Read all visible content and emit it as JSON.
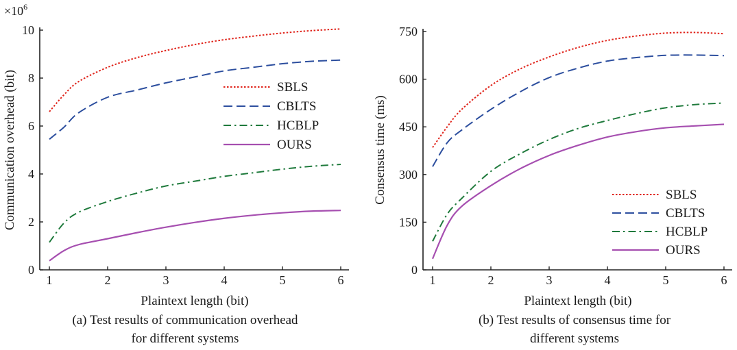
{
  "colors": {
    "SBLS": "#e0241b",
    "CBLTS": "#2c4e9e",
    "HCBLP": "#1f7a3c",
    "OURS": "#a64fb0",
    "axis": "#222222"
  },
  "chart_data": [
    {
      "type": "line",
      "ylabel": "Communication overhead (bit)",
      "xlabel": "Plaintext length (bit)",
      "caption_line1": "(a) Test results of communication overhead",
      "caption_line2": "for different systems",
      "y_multiplier": "×10",
      "y_multiplier_exp": "6",
      "xlim": [
        1,
        6
      ],
      "ylim": [
        0,
        10
      ],
      "xticks": [
        "1",
        "2",
        "3",
        "4",
        "5",
        "6"
      ],
      "yticks": [
        "0",
        "2",
        "4",
        "6",
        "8",
        "10"
      ],
      "legend_position": "middle-right",
      "x": [
        1,
        1.25,
        1.5,
        2,
        2.5,
        3,
        3.5,
        4,
        4.5,
        5,
        5.5,
        6
      ],
      "series": [
        {
          "name": "SBLS",
          "style": "dotted",
          "values": [
            6.6,
            7.3,
            7.85,
            8.45,
            8.85,
            9.15,
            9.4,
            9.6,
            9.75,
            9.88,
            9.98,
            10.05
          ]
        },
        {
          "name": "CBLTS",
          "style": "dashed",
          "values": [
            5.45,
            5.95,
            6.55,
            7.2,
            7.5,
            7.8,
            8.05,
            8.3,
            8.45,
            8.6,
            8.7,
            8.75
          ]
        },
        {
          "name": "HCBLP",
          "style": "dashdot",
          "values": [
            1.15,
            1.95,
            2.4,
            2.85,
            3.2,
            3.5,
            3.7,
            3.9,
            4.05,
            4.2,
            4.32,
            4.4
          ]
        },
        {
          "name": "OURS",
          "style": "solid",
          "values": [
            0.38,
            0.8,
            1.05,
            1.3,
            1.55,
            1.78,
            1.98,
            2.15,
            2.28,
            2.38,
            2.45,
            2.48
          ]
        }
      ]
    },
    {
      "type": "line",
      "ylabel": "Consensus time (ms)",
      "xlabel": "Plaintext length (bit)",
      "caption_line1": "(b) Test results of consensus time for",
      "caption_line2": "different systems",
      "xlim": [
        1,
        6
      ],
      "ylim": [
        0,
        750
      ],
      "xticks": [
        "1",
        "2",
        "3",
        "4",
        "5",
        "6"
      ],
      "yticks": [
        "0",
        "150",
        "300",
        "450",
        "600",
        "750"
      ],
      "legend_position": "bottom-right",
      "x": [
        1,
        1.25,
        1.5,
        2,
        2.5,
        3,
        3.5,
        4,
        4.5,
        5,
        5.5,
        6
      ],
      "series": [
        {
          "name": "SBLS",
          "style": "dotted",
          "values": [
            385,
            450,
            505,
            580,
            632,
            670,
            700,
            722,
            736,
            745,
            747,
            743
          ]
        },
        {
          "name": "CBLTS",
          "style": "dashed",
          "values": [
            325,
            400,
            440,
            505,
            560,
            605,
            635,
            657,
            668,
            675,
            676,
            674
          ]
        },
        {
          "name": "HCBLP",
          "style": "dashdot",
          "values": [
            90,
            175,
            225,
            310,
            365,
            410,
            445,
            470,
            492,
            510,
            520,
            525
          ]
        },
        {
          "name": "OURS",
          "style": "solid",
          "values": [
            35,
            140,
            200,
            265,
            318,
            360,
            392,
            418,
            435,
            447,
            453,
            458
          ]
        }
      ]
    }
  ]
}
